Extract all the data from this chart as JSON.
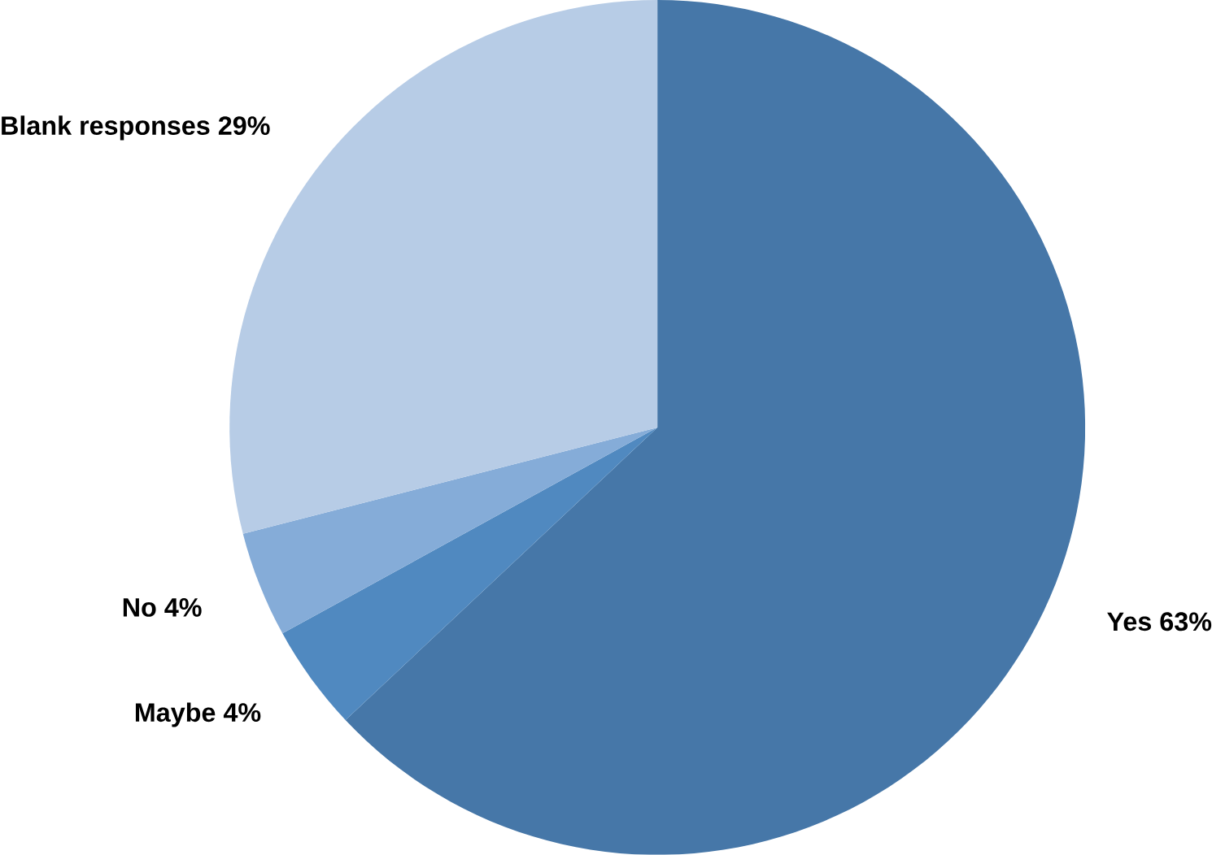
{
  "chart_data": {
    "type": "pie",
    "categories": [
      "Yes",
      "Maybe",
      "No",
      "Blank responses"
    ],
    "values": [
      63,
      4,
      4,
      29
    ],
    "value_labels": [
      "63%",
      "4%",
      "4%",
      "29%"
    ],
    "colors": [
      "#4677a8",
      "#5089c0",
      "#85acd8",
      "#b7cce6"
    ]
  }
}
